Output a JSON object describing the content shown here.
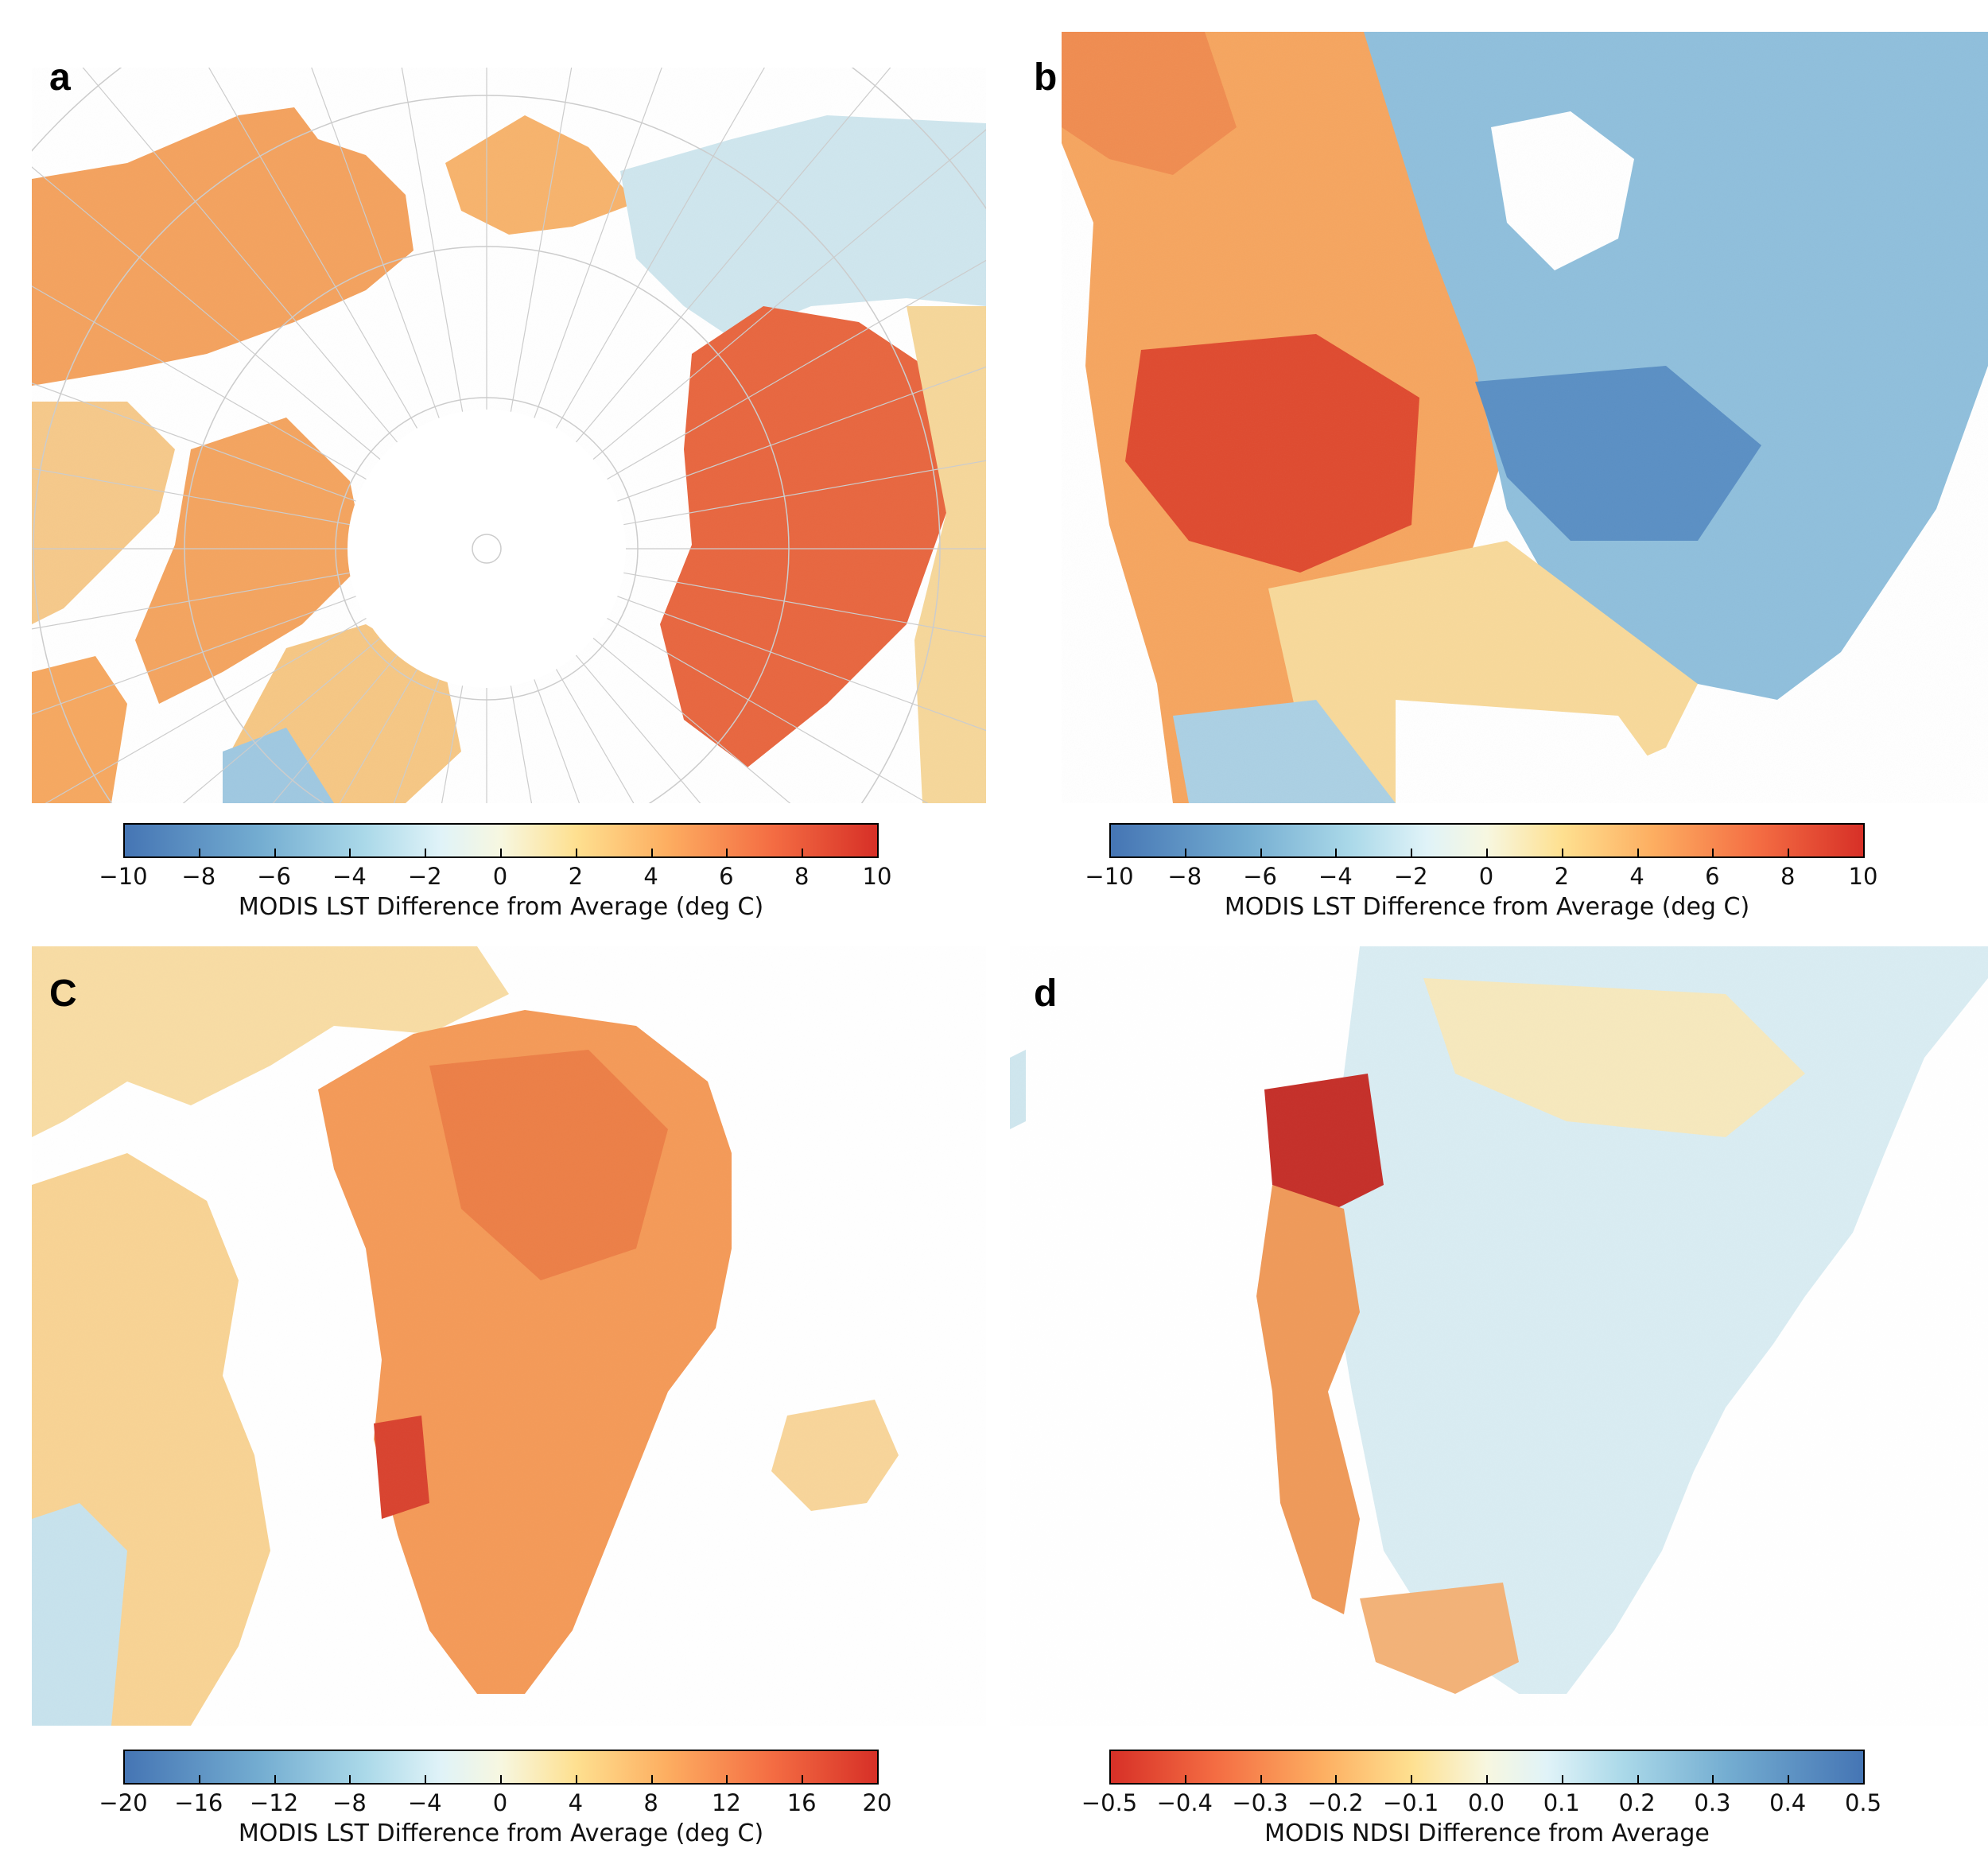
{
  "panels": [
    {
      "letter": "a",
      "colorbar": {
        "min": -10,
        "max": 10,
        "ticks": [
          "−10",
          "−8",
          "−6",
          "−4",
          "−2",
          "0",
          "2",
          "4",
          "6",
          "8",
          "10"
        ],
        "label": "MODIS LST Difference from Average (deg C)",
        "colormap": "blue-to-red (RdYlBu reversed)"
      }
    },
    {
      "letter": "b",
      "colorbar": {
        "min": -10,
        "max": 10,
        "ticks": [
          "−10",
          "−8",
          "−6",
          "−4",
          "−2",
          "0",
          "2",
          "4",
          "6",
          "8",
          "10"
        ],
        "label": "MODIS LST Difference from Average (deg C)",
        "colormap": "blue-to-red (RdYlBu reversed)"
      }
    },
    {
      "letter": "C",
      "colorbar": {
        "min": -20,
        "max": 20,
        "ticks": [
          "−20",
          "−16",
          "−12",
          "−8",
          "−4",
          "0",
          "4",
          "8",
          "12",
          "16",
          "20"
        ],
        "label": "MODIS LST Difference from Average (deg C)",
        "colormap": "blue-to-red (RdYlBu reversed)"
      }
    },
    {
      "letter": "d",
      "colorbar": {
        "min": -0.5,
        "max": 0.5,
        "ticks": [
          "−0.5",
          "−0.4",
          "−0.3",
          "−0.2",
          "−0.1",
          "0.0",
          "0.1",
          "0.2",
          "0.3",
          "0.4",
          "0.5"
        ],
        "label": "MODIS NDSI Difference from Average",
        "colormap": "red-to-blue (RdYlBu)"
      }
    }
  ],
  "colors": {
    "deep_blue": "#4575b4",
    "light_blue": "#abd9e9",
    "pale": "#f7f7e0",
    "yellow": "#fee090",
    "orange": "#f6a05a",
    "red": "#d73027",
    "graticule": "#cccccc"
  }
}
